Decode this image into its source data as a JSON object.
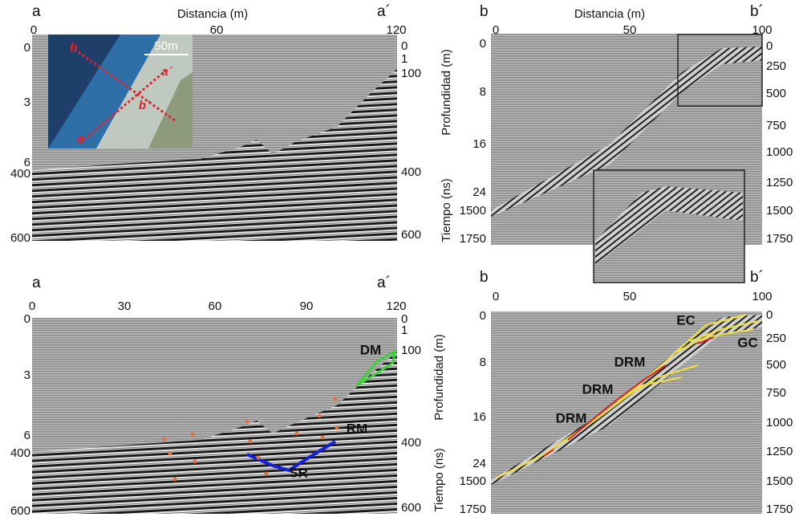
{
  "panels": [
    {
      "letter_left": "a",
      "letter_right": "a´",
      "x_label": "Distancia (m)",
      "top_ticks": [
        0,
        60,
        120
      ],
      "left_ticks": [
        0,
        3,
        6,
        400,
        600
      ],
      "right_ticks": [
        0,
        1,
        100,
        400,
        600
      ],
      "inset": {
        "scale": "50m",
        "labels": [
          "b",
          "a´",
          "b´",
          "a"
        ]
      }
    },
    {
      "letter_left": "b",
      "letter_right": "b´",
      "x_label": "Distancia (m)",
      "top_ticks": [
        0,
        50,
        100
      ],
      "left_ticks": [
        0,
        8,
        16,
        24,
        1500,
        1750
      ],
      "right_ticks": [
        0,
        250,
        500,
        750,
        1000,
        1250,
        1500,
        1750
      ],
      "depth_label": "Profundidad (m)",
      "time_label": "Tiempo (ns)"
    },
    {
      "letter_left": "a",
      "letter_right": "a´",
      "top_ticks": [
        0,
        30,
        60,
        90,
        120
      ],
      "left_ticks": [
        0,
        3,
        6,
        400,
        600
      ],
      "right_ticks": [
        0,
        1,
        100,
        400,
        600
      ],
      "annotations": [
        "DM",
        "RM",
        "SR"
      ]
    },
    {
      "letter_left": "b",
      "letter_right": "b´",
      "top_ticks": [
        0,
        50,
        100
      ],
      "left_ticks": [
        0,
        8,
        16,
        24,
        1500,
        1750
      ],
      "right_ticks": [
        0,
        250,
        500,
        750,
        1000,
        1250,
        1500,
        1750
      ],
      "depth_label": "Profundidad (m)",
      "time_label": "Tiempo (ns)",
      "annotations": [
        "EC",
        "GC",
        "DRM",
        "DRM",
        "DRM"
      ]
    }
  ]
}
